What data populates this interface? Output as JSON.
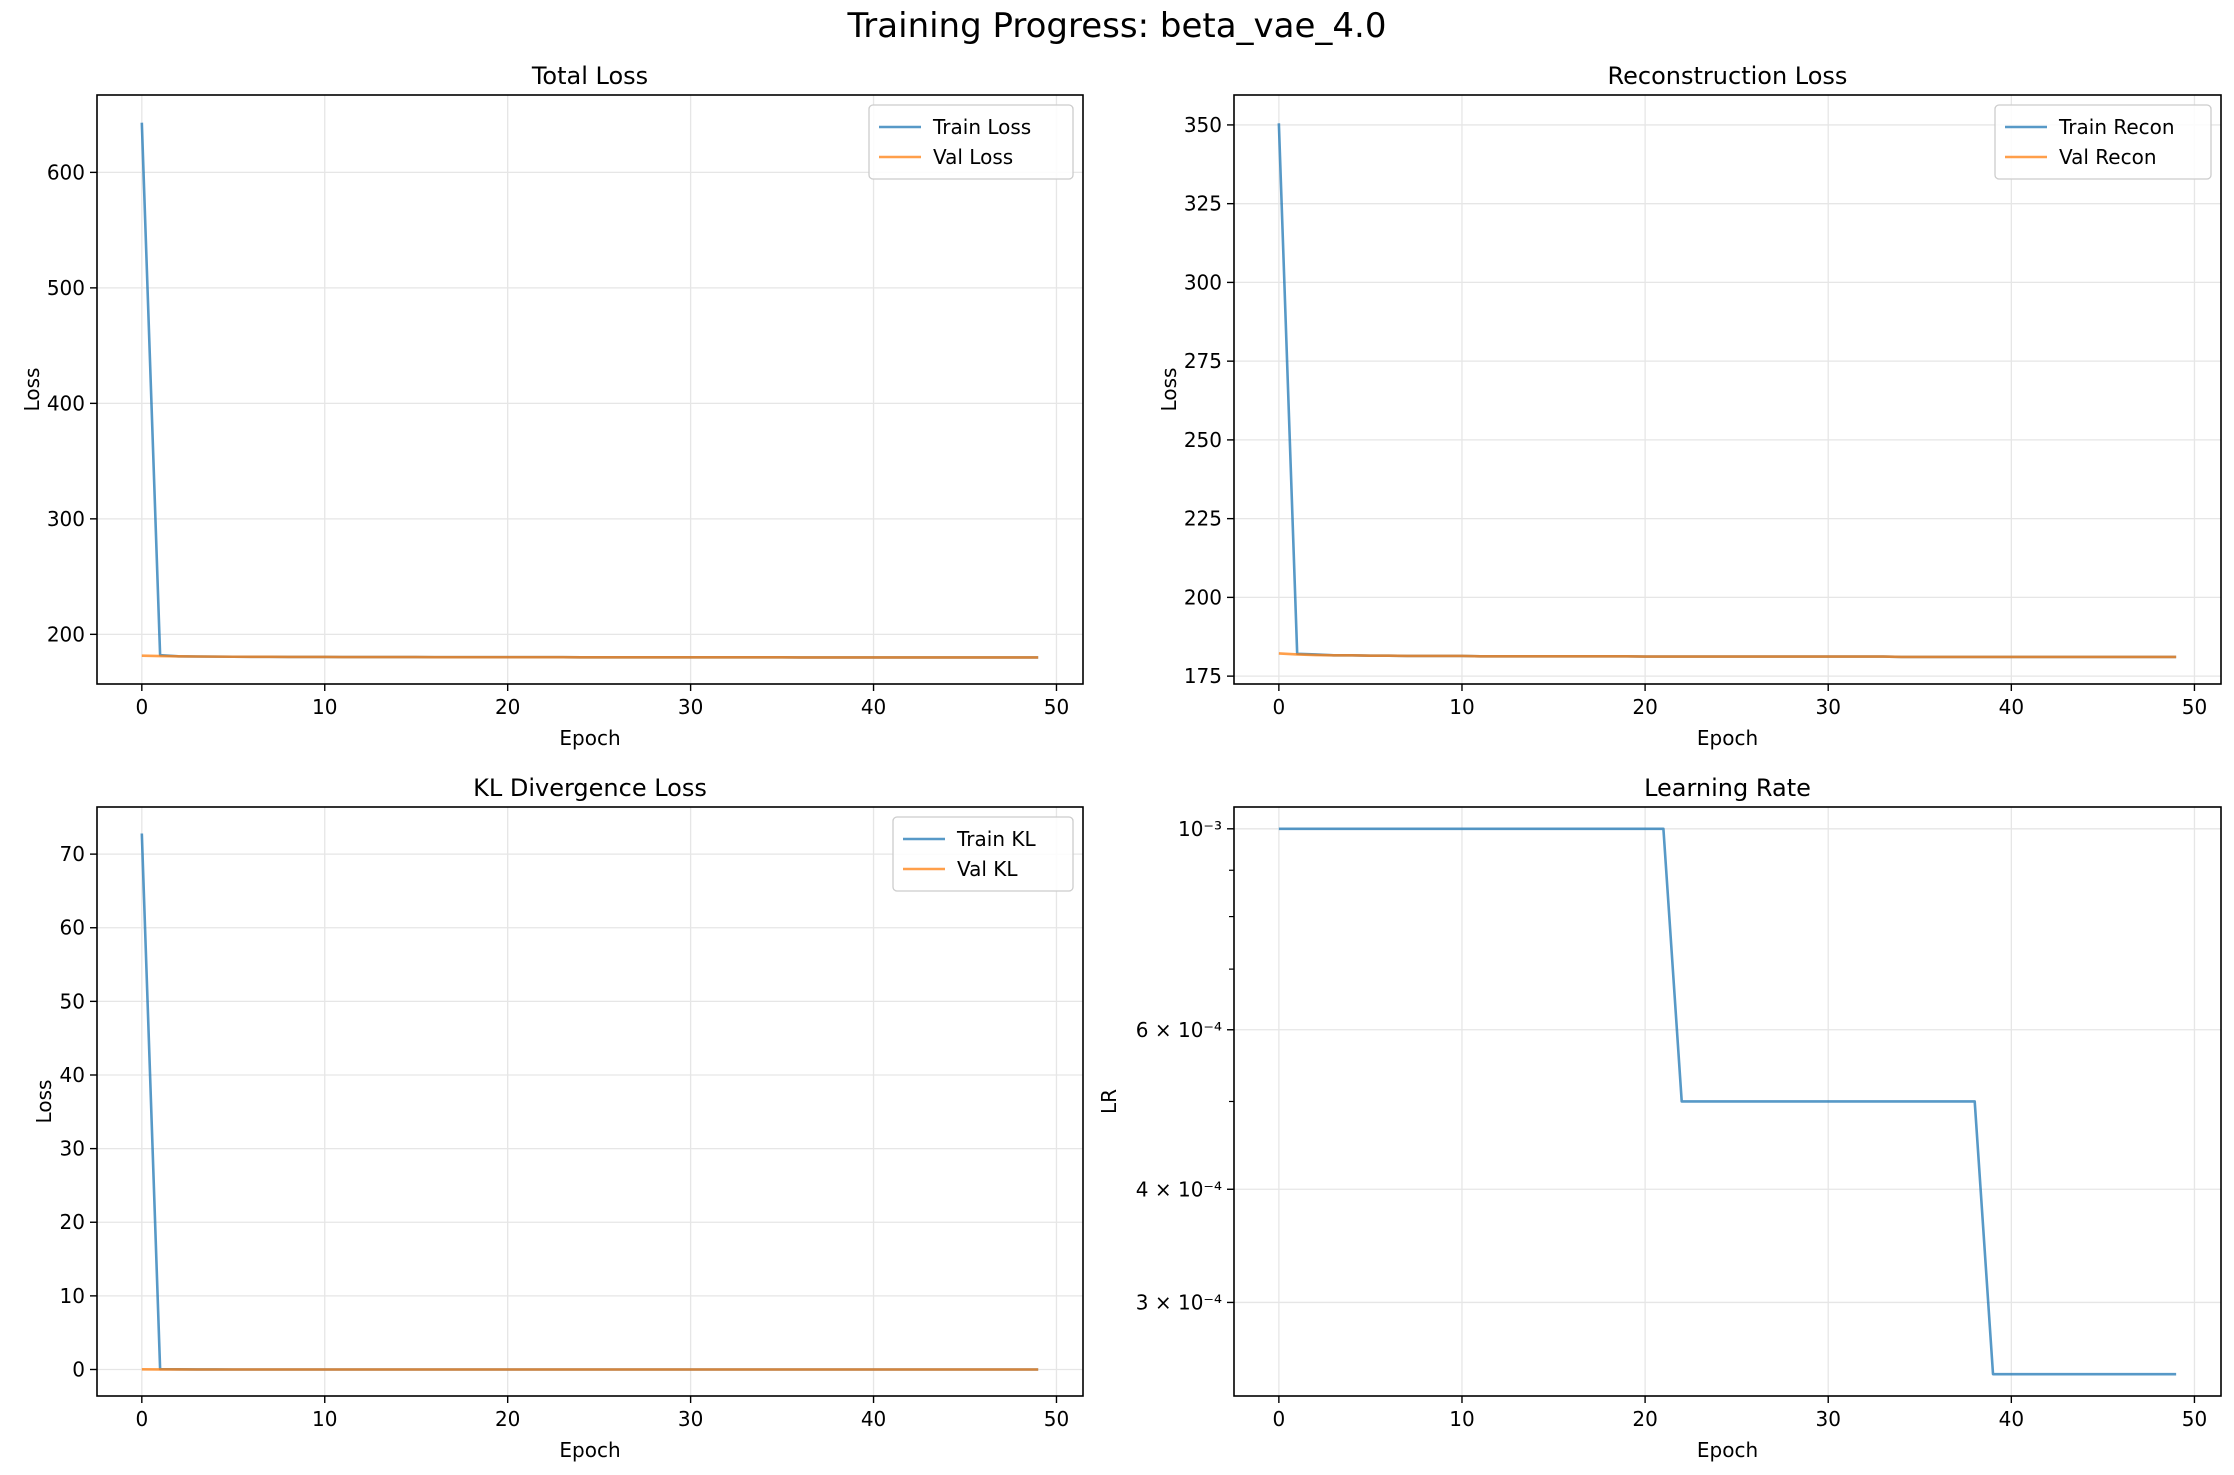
{
  "figure": {
    "title": "Training Progress: beta_vae_4.0"
  },
  "colors": {
    "train": "#1f77b4",
    "val": "#ff7f0e",
    "grid": "#e6e6e6"
  },
  "chart_data": [
    {
      "type": "line",
      "title": "Total Loss",
      "xlabel": "Epoch",
      "ylabel": "Loss",
      "xlim": [
        -2.45,
        51.45
      ],
      "ylim": [
        157,
        667
      ],
      "xticks": [
        0,
        10,
        20,
        30,
        40,
        50
      ],
      "yticks": [
        200,
        300,
        400,
        500,
        600
      ],
      "ytick_labels": [
        "200",
        "300",
        "400",
        "500",
        "600"
      ],
      "yscale": "linear",
      "grid": true,
      "legend": "upper right",
      "series": [
        {
          "name": "Train Loss",
          "color": "#1f77b4",
          "x_range": [
            0,
            49
          ],
          "values": [
            643,
            182,
            181,
            180.8,
            180.7,
            180.6,
            180.5,
            180.5,
            180.4,
            180.4,
            180.4,
            180.3,
            180.3,
            180.3,
            180.3,
            180.3,
            180.2,
            180.2,
            180.2,
            180.2,
            180.2,
            180.2,
            180.2,
            180.2,
            180.1,
            180.1,
            180.1,
            180.1,
            180.1,
            180.1,
            180.1,
            180.1,
            180.1,
            180.1,
            180.1,
            180.1,
            180,
            180,
            180,
            180,
            180,
            180,
            180,
            180,
            180,
            180,
            180,
            180,
            180,
            180
          ]
        },
        {
          "name": "Val Loss",
          "color": "#ff7f0e",
          "x_range": [
            0,
            49
          ],
          "values": [
            181.5,
            181.2,
            181,
            180.8,
            180.7,
            180.6,
            180.5,
            180.5,
            180.4,
            180.4,
            180.4,
            180.3,
            180.3,
            180.3,
            180.3,
            180.3,
            180.2,
            180.2,
            180.2,
            180.2,
            180.2,
            180.2,
            180.2,
            180.2,
            180.1,
            180.1,
            180.1,
            180.1,
            180.1,
            180.1,
            180.1,
            180.1,
            180.1,
            180.1,
            180.1,
            180.1,
            180,
            180,
            180,
            180,
            180,
            180,
            180,
            180,
            180,
            180,
            180,
            180,
            180,
            180
          ]
        }
      ]
    },
    {
      "type": "line",
      "title": "Reconstruction Loss",
      "xlabel": "Epoch",
      "ylabel": "Loss",
      "xlim": [
        -2.45,
        51.45
      ],
      "ylim": [
        172.5,
        359.5
      ],
      "xticks": [
        0,
        10,
        20,
        30,
        40,
        50
      ],
      "yticks": [
        175,
        200,
        225,
        250,
        275,
        300,
        325,
        350
      ],
      "ytick_labels": [
        "175",
        "200",
        "225",
        "250",
        "275",
        "300",
        "325",
        "350"
      ],
      "yscale": "linear",
      "grid": true,
      "legend": "upper right",
      "series": [
        {
          "name": "Train Recon",
          "color": "#1f77b4",
          "x_range": [
            0,
            49
          ],
          "values": [
            350.5,
            182.1,
            181.9,
            181.6,
            181.6,
            181.5,
            181.5,
            181.4,
            181.4,
            181.4,
            181.4,
            181.3,
            181.3,
            181.3,
            181.3,
            181.3,
            181.3,
            181.3,
            181.3,
            181.3,
            181.2,
            181.2,
            181.2,
            181.2,
            181.2,
            181.2,
            181.2,
            181.2,
            181.2,
            181.2,
            181.2,
            181.2,
            181.2,
            181.2,
            181.1,
            181.1,
            181.1,
            181.1,
            181.1,
            181.1,
            181.1,
            181.1,
            181.1,
            181.1,
            181.1,
            181.1,
            181.1,
            181.1,
            181.1,
            181.1
          ]
        },
        {
          "name": "Val Recon",
          "color": "#ff7f0e",
          "x_range": [
            0,
            49
          ],
          "values": [
            182.2,
            181.9,
            181.7,
            181.6,
            181.6,
            181.5,
            181.5,
            181.4,
            181.4,
            181.4,
            181.4,
            181.3,
            181.3,
            181.3,
            181.3,
            181.3,
            181.3,
            181.3,
            181.3,
            181.3,
            181.2,
            181.2,
            181.2,
            181.2,
            181.2,
            181.2,
            181.2,
            181.2,
            181.2,
            181.2,
            181.2,
            181.2,
            181.2,
            181.2,
            181.1,
            181.1,
            181.1,
            181.1,
            181.1,
            181.1,
            181.1,
            181.1,
            181.1,
            181.1,
            181.1,
            181.1,
            181.1,
            181.1,
            181.1,
            181.1
          ]
        }
      ]
    },
    {
      "type": "line",
      "title": "KL Divergence Loss",
      "xlabel": "Epoch",
      "ylabel": "Loss",
      "xlim": [
        -2.45,
        51.45
      ],
      "ylim": [
        -3.6,
        76.4
      ],
      "xticks": [
        0,
        10,
        20,
        30,
        40,
        50
      ],
      "yticks": [
        0,
        10,
        20,
        30,
        40,
        50,
        60,
        70
      ],
      "ytick_labels": [
        "0",
        "10",
        "20",
        "30",
        "40",
        "50",
        "60",
        "70"
      ],
      "yscale": "linear",
      "grid": true,
      "legend": "upper right",
      "series": [
        {
          "name": "Train KL",
          "color": "#1f77b4",
          "x_range": [
            0,
            49
          ],
          "values": [
            72.8,
            0.05,
            0.02,
            0.01,
            0.01,
            0,
            0,
            0,
            0,
            0,
            0,
            0,
            0,
            0,
            0,
            0,
            0,
            0,
            0,
            0,
            0,
            0,
            0,
            0,
            0,
            0,
            0,
            0,
            0,
            0,
            0,
            0,
            0,
            0,
            0,
            0,
            0,
            0,
            0,
            0,
            0,
            0,
            0,
            0,
            0,
            0,
            0,
            0,
            0,
            0
          ]
        },
        {
          "name": "Val KL",
          "color": "#ff7f0e",
          "x_range": [
            0,
            49
          ],
          "values": [
            0.02,
            0.01,
            0.01,
            0,
            0,
            0,
            0,
            0,
            0,
            0,
            0,
            0,
            0,
            0,
            0,
            0,
            0,
            0,
            0,
            0,
            0,
            0,
            0,
            0,
            0,
            0,
            0,
            0,
            0,
            0,
            0,
            0,
            0,
            0,
            0,
            0,
            0,
            0,
            0,
            0,
            0,
            0,
            0,
            0,
            0,
            0,
            0,
            0,
            0,
            0
          ]
        }
      ]
    },
    {
      "type": "line",
      "title": "Learning Rate",
      "xlabel": "Epoch",
      "ylabel": "LR",
      "xlim": [
        -2.45,
        51.45
      ],
      "ylim": [
        0.0002365,
        0.001057
      ],
      "xticks": [
        0,
        10,
        20,
        30,
        40,
        50
      ],
      "yticks": [
        0.001,
        0.0006,
        0.0004,
        0.0003
      ],
      "ytick_labels": [
        "10⁻³",
        "6 × 10⁻⁴",
        "4 × 10⁻⁴",
        "3 × 10⁻⁴"
      ],
      "yscale": "log",
      "grid": true,
      "legend": "none",
      "series": [
        {
          "name": "",
          "color": "#1f77b4",
          "x_range": [
            0,
            49
          ],
          "values": [
            0.001,
            0.001,
            0.001,
            0.001,
            0.001,
            0.001,
            0.001,
            0.001,
            0.001,
            0.001,
            0.001,
            0.001,
            0.001,
            0.001,
            0.001,
            0.001,
            0.001,
            0.001,
            0.001,
            0.001,
            0.001,
            0.001,
            0.0005,
            0.0005,
            0.0005,
            0.0005,
            0.0005,
            0.0005,
            0.0005,
            0.0005,
            0.0005,
            0.0005,
            0.0005,
            0.0005,
            0.0005,
            0.0005,
            0.0005,
            0.0005,
            0.0005,
            0.00025,
            0.00025,
            0.00025,
            0.00025,
            0.00025,
            0.00025,
            0.00025,
            0.00025,
            0.00025,
            0.00025,
            0.00025
          ]
        }
      ]
    }
  ]
}
